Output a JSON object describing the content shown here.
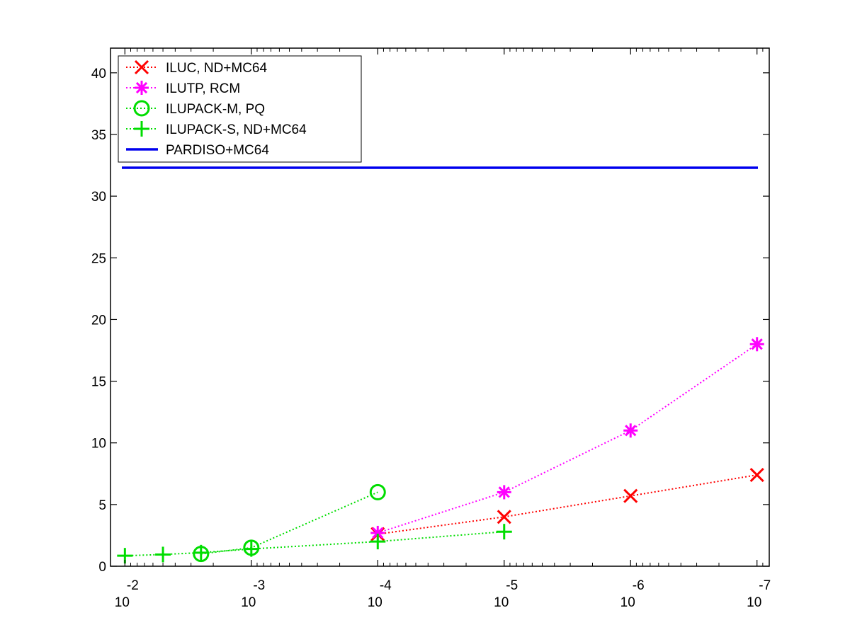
{
  "chart_data": {
    "type": "line",
    "x_scale": "log",
    "x_reversed": true,
    "xlim": [
      0.013,
      8e-08
    ],
    "ylim": [
      0,
      42
    ],
    "x_ticks": [
      {
        "value": 0.01,
        "base": "10",
        "exp": "-2"
      },
      {
        "value": 0.001,
        "base": "10",
        "exp": "-3"
      },
      {
        "value": 0.0001,
        "base": "10",
        "exp": "-4"
      },
      {
        "value": 1e-05,
        "base": "10",
        "exp": "-5"
      },
      {
        "value": 1e-06,
        "base": "10",
        "exp": "-6"
      },
      {
        "value": 1e-07,
        "base": "10",
        "exp": "-7"
      }
    ],
    "y_ticks": [
      0,
      5,
      10,
      15,
      20,
      25,
      30,
      35,
      40
    ],
    "y_tick_labels": [
      "0",
      "5",
      "10",
      "15",
      "20",
      "25",
      "30",
      "35",
      "40"
    ],
    "grid": false,
    "legend_position": "top-left",
    "series": [
      {
        "name": "ILUC,  ND+MC64",
        "color": "#ff0000",
        "line_style": "dotted",
        "marker": "x",
        "x": [
          0.0001,
          1e-05,
          1e-06,
          1e-07
        ],
        "y": [
          2.6,
          4.0,
          5.7,
          7.4
        ]
      },
      {
        "name": "ILUTP, RCM",
        "color": "#ff00ff",
        "line_style": "dotted",
        "marker": "asterisk",
        "x": [
          0.0001,
          1e-05,
          1e-06,
          1e-07
        ],
        "y": [
          2.7,
          6.0,
          11.0,
          18.0
        ]
      },
      {
        "name": "ILUPACK-M, PQ",
        "color": "#00dd00",
        "line_style": "dotted",
        "marker": "circle",
        "x": [
          0.0025,
          0.001,
          0.0001
        ],
        "y": [
          1.0,
          1.5,
          6.0
        ]
      },
      {
        "name": "ILUPACK-S, ND+MC64",
        "color": "#00dd00",
        "line_style": "dotted",
        "marker": "plus",
        "x": [
          0.01,
          0.005,
          0.0025,
          0.001,
          0.0001,
          1e-05
        ],
        "y": [
          0.85,
          0.95,
          1.1,
          1.4,
          2.0,
          2.8
        ]
      },
      {
        "name": "PARDISO+MC64",
        "color": "#0000ee",
        "line_style": "solid",
        "marker": "none",
        "x": [
          0.01,
          1e-07
        ],
        "y": [
          32.3,
          32.3
        ]
      }
    ]
  }
}
